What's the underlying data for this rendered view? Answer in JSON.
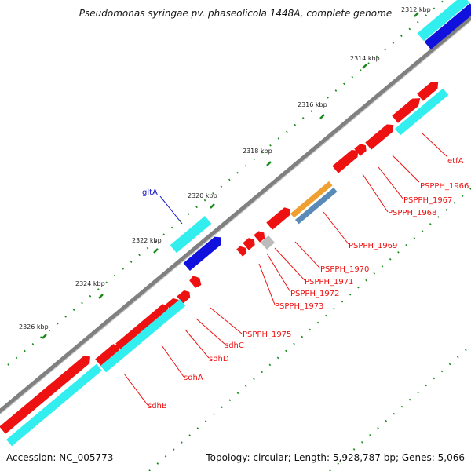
{
  "title": "Pseudomonas syringae pv. phaseolicola 1448A, complete genome",
  "footer": {
    "accession": "Accession: NC_005773",
    "summary": "Topology: circular; Length: 5,928,787 bp; Genes: 5,066"
  },
  "colors": {
    "backbone": "#808080",
    "cds": "#ee1111",
    "rna": "#33eeee",
    "blue_rna": "#1111dd",
    "orange": "#f0a030",
    "steel": "#5a8ab8",
    "grey_feature": "#bbbbbb",
    "tick": "#1b8a1b",
    "red_label": "#ee1111",
    "blue_label": "#1111cc"
  },
  "ruler": [
    "2312 kbp",
    "2314 kbp",
    "2316 kbp",
    "2318 kbp",
    "2320 kbp",
    "2322 kbp",
    "2324 kbp",
    "2326 kbp"
  ],
  "gene_labels": [
    {
      "text": "etfA",
      "color": "red"
    },
    {
      "text": "PSPPH_1966",
      "color": "red"
    },
    {
      "text": "PSPPH_1967",
      "color": "red"
    },
    {
      "text": "PSPPH_1968",
      "color": "red"
    },
    {
      "text": "PSPPH_1969",
      "color": "red"
    },
    {
      "text": "PSPPH_1970",
      "color": "red"
    },
    {
      "text": "PSPPH_1971",
      "color": "red"
    },
    {
      "text": "PSPPH_1972",
      "color": "red"
    },
    {
      "text": "PSPPH_1973",
      "color": "red"
    },
    {
      "text": "PSPPH_1975",
      "color": "red"
    },
    {
      "text": "sdhC",
      "color": "red"
    },
    {
      "text": "sdhD",
      "color": "red"
    },
    {
      "text": "sdhA",
      "color": "red"
    },
    {
      "text": "sdhB",
      "color": "red"
    },
    {
      "text": "gltA",
      "color": "blue"
    }
  ]
}
